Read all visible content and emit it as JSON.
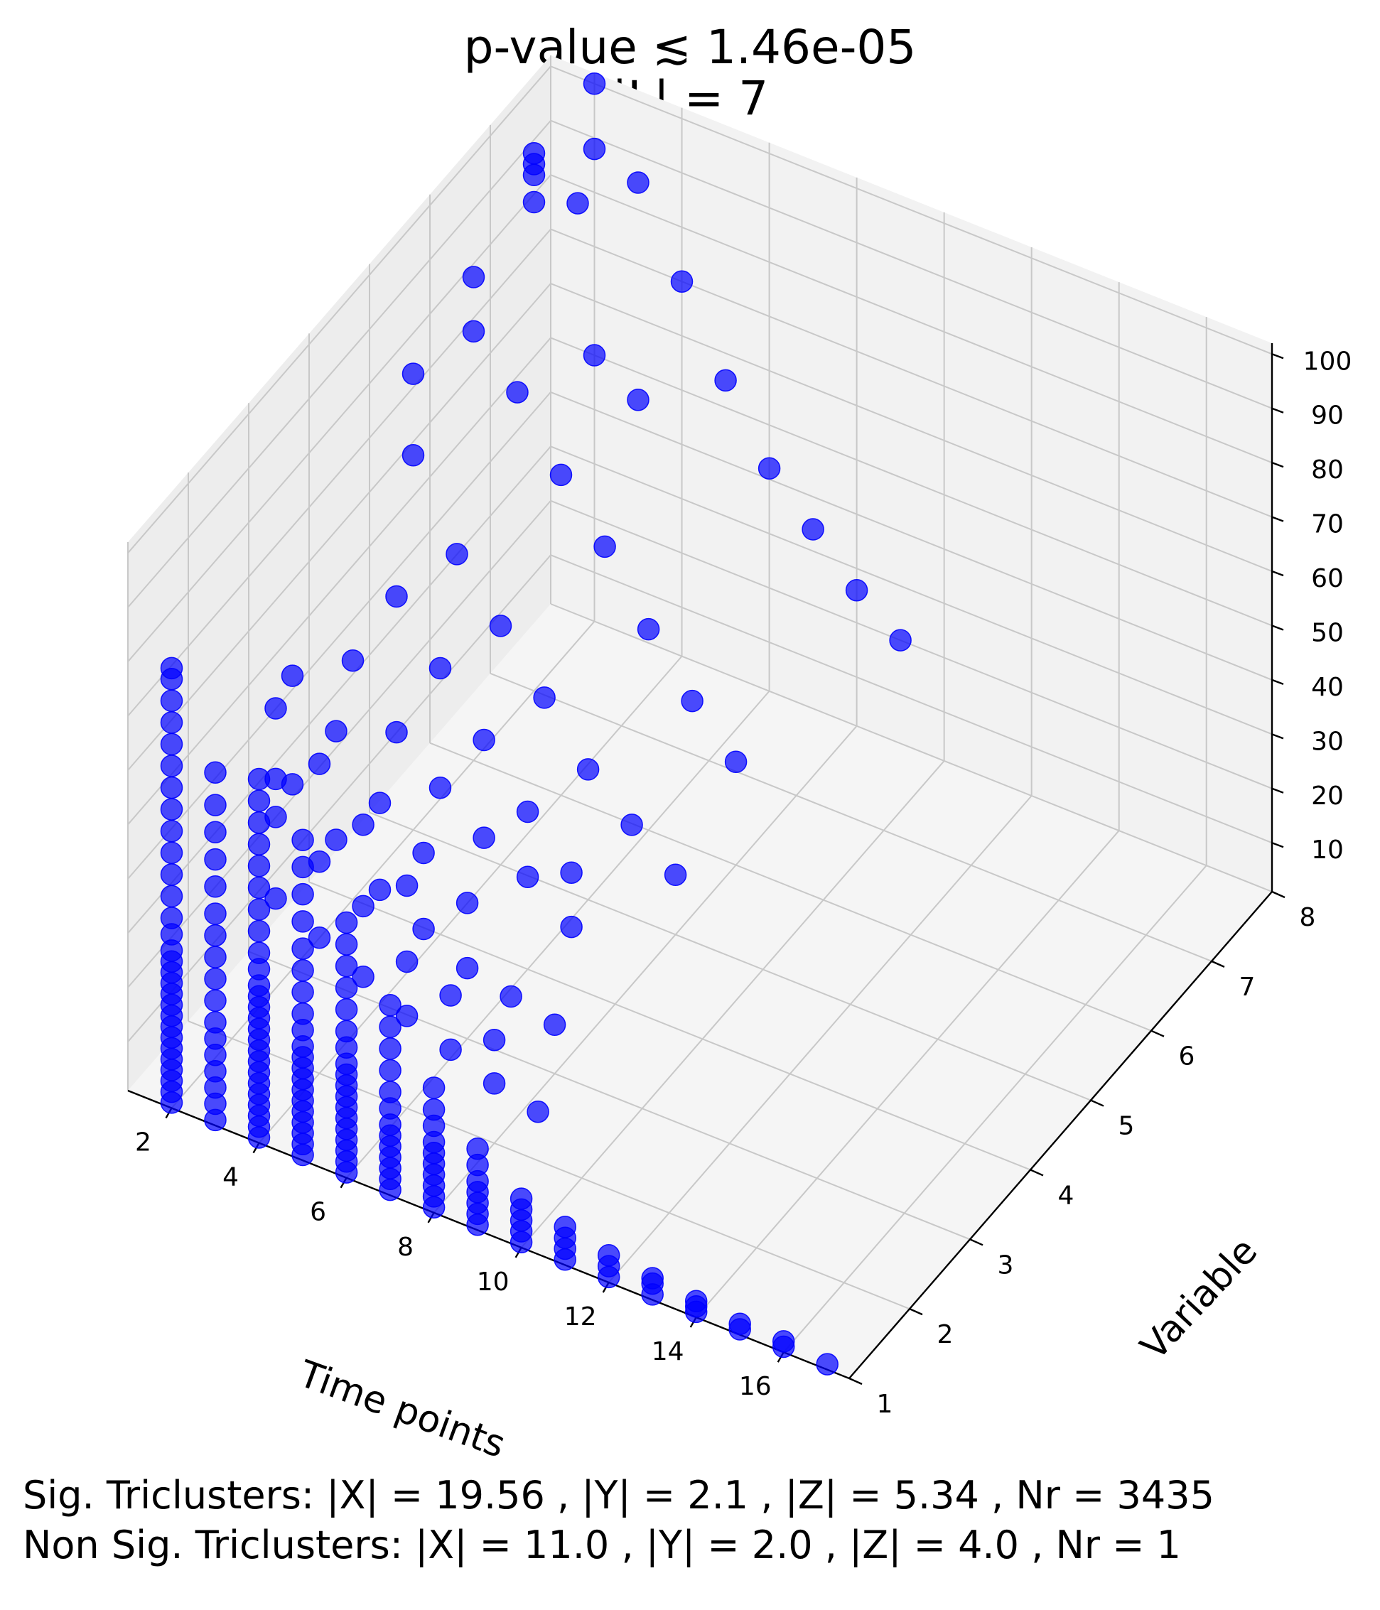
{
  "chart_data": {
    "type": "scatter3d",
    "title_lines": [
      "p-value ≲ 1.46e-05",
      "|L| = 7"
    ],
    "xlabel": "Time points",
    "ylabel": "Variable",
    "zlabel": "",
    "x_ticks": [
      2,
      4,
      6,
      8,
      10,
      12,
      14,
      16
    ],
    "y_ticks": [
      1,
      2,
      3,
      4,
      5,
      6,
      7,
      8
    ],
    "z_ticks": [
      10,
      20,
      30,
      40,
      50,
      60,
      70,
      80,
      90,
      100
    ],
    "xlim": [
      1,
      17.5
    ],
    "ylim": [
      1,
      8
    ],
    "zlim": [
      1,
      102
    ],
    "grid": true,
    "marker_color": "#0000ff",
    "marker_alpha": 0.7,
    "series": [
      {
        "marker": "circle",
        "points": [
          [
            2,
            1,
            2
          ],
          [
            2,
            1,
            4
          ],
          [
            2,
            1,
            6
          ],
          [
            2,
            1,
            8
          ],
          [
            2,
            1,
            10
          ],
          [
            2,
            1,
            12
          ],
          [
            2,
            1,
            14
          ],
          [
            2,
            1,
            16
          ],
          [
            2,
            1,
            18
          ],
          [
            2,
            1,
            20
          ],
          [
            2,
            1,
            22
          ],
          [
            2,
            1,
            24
          ],
          [
            2,
            1,
            26
          ],
          [
            2,
            1,
            28
          ],
          [
            2,
            1,
            30
          ],
          [
            2,
            1,
            33
          ],
          [
            2,
            1,
            36
          ],
          [
            2,
            1,
            40
          ],
          [
            2,
            1,
            44
          ],
          [
            2,
            1,
            48
          ],
          [
            2,
            1,
            52
          ],
          [
            2,
            1,
            56
          ],
          [
            2,
            1,
            60
          ],
          [
            2,
            1,
            64
          ],
          [
            2,
            1,
            68
          ],
          [
            2,
            1,
            72
          ],
          [
            2,
            1,
            76
          ],
          [
            2,
            1,
            80
          ],
          [
            2,
            1,
            82
          ],
          [
            3,
            1,
            2
          ],
          [
            3,
            1,
            5
          ],
          [
            3,
            1,
            8
          ],
          [
            3,
            1,
            11
          ],
          [
            3,
            1,
            14
          ],
          [
            3,
            1,
            17
          ],
          [
            3,
            1,
            20
          ],
          [
            3,
            1,
            24
          ],
          [
            3,
            1,
            28
          ],
          [
            3,
            1,
            32
          ],
          [
            3,
            1,
            36
          ],
          [
            3,
            1,
            40
          ],
          [
            3,
            1,
            45
          ],
          [
            3,
            1,
            50
          ],
          [
            3,
            1,
            55
          ],
          [
            3,
            1,
            60
          ],
          [
            3,
            1,
            66
          ],
          [
            4,
            1,
            2
          ],
          [
            4,
            1,
            4
          ],
          [
            4,
            1,
            6
          ],
          [
            4,
            1,
            8
          ],
          [
            4,
            1,
            10
          ],
          [
            4,
            1,
            12
          ],
          [
            4,
            1,
            14
          ],
          [
            4,
            1,
            16
          ],
          [
            4,
            1,
            18
          ],
          [
            4,
            1,
            20
          ],
          [
            4,
            1,
            22
          ],
          [
            4,
            1,
            24
          ],
          [
            4,
            1,
            26
          ],
          [
            4,
            1,
            28
          ],
          [
            4,
            1,
            30
          ],
          [
            4,
            1,
            33
          ],
          [
            4,
            1,
            36
          ],
          [
            4,
            1,
            40
          ],
          [
            4,
            1,
            44
          ],
          [
            4,
            1,
            48
          ],
          [
            4,
            1,
            52
          ],
          [
            4,
            1,
            56
          ],
          [
            4,
            1,
            60
          ],
          [
            4,
            1,
            64
          ],
          [
            4,
            1,
            68
          ],
          [
            5,
            1,
            2
          ],
          [
            5,
            1,
            4
          ],
          [
            5,
            1,
            6
          ],
          [
            5,
            1,
            8
          ],
          [
            5,
            1,
            10
          ],
          [
            5,
            1,
            12
          ],
          [
            5,
            1,
            14
          ],
          [
            5,
            1,
            16
          ],
          [
            5,
            1,
            18
          ],
          [
            5,
            1,
            20
          ],
          [
            5,
            1,
            22
          ],
          [
            5,
            1,
            25
          ],
          [
            5,
            1,
            28
          ],
          [
            5,
            1,
            32
          ],
          [
            5,
            1,
            36
          ],
          [
            5,
            1,
            40
          ],
          [
            5,
            1,
            45
          ],
          [
            5,
            1,
            50
          ],
          [
            5,
            1,
            55
          ],
          [
            5,
            1,
            60
          ],
          [
            6,
            1,
            2
          ],
          [
            6,
            1,
            4
          ],
          [
            6,
            1,
            6
          ],
          [
            6,
            1,
            8
          ],
          [
            6,
            1,
            10
          ],
          [
            6,
            1,
            12
          ],
          [
            6,
            1,
            14
          ],
          [
            6,
            1,
            16
          ],
          [
            6,
            1,
            18
          ],
          [
            6,
            1,
            20
          ],
          [
            6,
            1,
            22
          ],
          [
            6,
            1,
            25
          ],
          [
            6,
            1,
            28
          ],
          [
            6,
            1,
            32
          ],
          [
            6,
            1,
            36
          ],
          [
            6,
            1,
            40
          ],
          [
            6,
            1,
            44
          ],
          [
            6,
            1,
            48
          ],
          [
            7,
            1,
            2
          ],
          [
            7,
            1,
            4
          ],
          [
            7,
            1,
            6
          ],
          [
            7,
            1,
            8
          ],
          [
            7,
            1,
            10
          ],
          [
            7,
            1,
            12
          ],
          [
            7,
            1,
            14
          ],
          [
            7,
            1,
            17
          ],
          [
            7,
            1,
            20
          ],
          [
            7,
            1,
            24
          ],
          [
            7,
            1,
            28
          ],
          [
            7,
            1,
            32
          ],
          [
            7,
            1,
            36
          ],
          [
            8,
            1,
            2
          ],
          [
            8,
            1,
            4
          ],
          [
            8,
            1,
            6
          ],
          [
            8,
            1,
            8
          ],
          [
            8,
            1,
            10
          ],
          [
            8,
            1,
            12
          ],
          [
            8,
            1,
            14
          ],
          [
            8,
            1,
            17
          ],
          [
            8,
            1,
            20
          ],
          [
            8,
            1,
            24
          ],
          [
            9,
            1,
            2
          ],
          [
            9,
            1,
            4
          ],
          [
            9,
            1,
            6
          ],
          [
            9,
            1,
            8
          ],
          [
            9,
            1,
            10
          ],
          [
            9,
            1,
            13
          ],
          [
            9,
            1,
            16
          ],
          [
            10,
            1,
            2
          ],
          [
            10,
            1,
            4
          ],
          [
            10,
            1,
            6
          ],
          [
            10,
            1,
            8
          ],
          [
            10,
            1,
            10
          ],
          [
            11,
            1,
            2
          ],
          [
            11,
            1,
            4
          ],
          [
            11,
            1,
            6
          ],
          [
            11,
            1,
            8
          ],
          [
            12,
            1,
            2
          ],
          [
            12,
            1,
            4
          ],
          [
            12,
            1,
            6
          ],
          [
            13,
            1,
            2
          ],
          [
            13,
            1,
            4
          ],
          [
            13,
            1,
            5
          ],
          [
            14,
            1,
            2
          ],
          [
            14,
            1,
            3
          ],
          [
            14,
            1,
            4
          ],
          [
            15,
            1,
            2
          ],
          [
            15,
            1,
            3
          ],
          [
            16,
            1,
            2
          ],
          [
            16,
            1,
            3
          ],
          [
            17,
            1,
            2
          ],
          [
            3,
            2,
            30
          ],
          [
            3,
            2,
            45
          ],
          [
            3,
            2,
            52
          ],
          [
            3,
            2,
            65
          ],
          [
            4,
            2,
            26
          ],
          [
            4,
            2,
            40
          ],
          [
            4,
            2,
            58
          ],
          [
            5,
            2,
            22
          ],
          [
            5,
            2,
            35
          ],
          [
            5,
            2,
            50
          ],
          [
            6,
            2,
            18
          ],
          [
            6,
            2,
            28
          ],
          [
            6,
            2,
            42
          ],
          [
            7,
            2,
            15
          ],
          [
            7,
            2,
            25
          ],
          [
            8,
            2,
            12
          ],
          [
            8,
            2,
            20
          ],
          [
            9,
            2,
            10
          ],
          [
            2,
            3,
            35
          ],
          [
            2,
            3,
            55
          ],
          [
            3,
            3,
            28
          ],
          [
            3,
            3,
            48
          ],
          [
            4,
            3,
            22
          ],
          [
            4,
            3,
            38
          ],
          [
            5,
            3,
            18
          ],
          [
            5,
            3,
            32
          ],
          [
            6,
            3,
            14
          ],
          [
            6,
            3,
            26
          ],
          [
            7,
            3,
            12
          ],
          [
            8,
            3,
            10
          ],
          [
            2,
            4,
            45
          ],
          [
            3,
            4,
            35
          ],
          [
            3,
            4,
            60
          ],
          [
            4,
            4,
            28
          ],
          [
            4,
            4,
            50
          ],
          [
            5,
            4,
            22
          ],
          [
            5,
            4,
            40
          ],
          [
            6,
            4,
            18
          ],
          [
            6,
            4,
            30
          ],
          [
            7,
            4,
            12
          ],
          [
            7,
            4,
            22
          ],
          [
            2,
            5,
            85
          ],
          [
            2,
            5,
            70
          ],
          [
            3,
            5,
            55
          ],
          [
            4,
            5,
            45
          ],
          [
            5,
            5,
            35
          ],
          [
            6,
            5,
            25
          ],
          [
            7,
            5,
            18
          ],
          [
            8,
            5,
            12
          ],
          [
            2,
            6,
            90
          ],
          [
            2,
            6,
            80
          ],
          [
            3,
            6,
            72
          ],
          [
            4,
            6,
            60
          ],
          [
            5,
            6,
            50
          ],
          [
            6,
            6,
            38
          ],
          [
            7,
            6,
            28
          ],
          [
            8,
            6,
            20
          ],
          [
            2,
            7,
            100
          ],
          [
            2,
            7,
            98
          ],
          [
            2,
            7,
            96
          ],
          [
            3,
            7,
            94
          ],
          [
            2,
            7,
            91
          ],
          [
            2,
            8,
            100
          ],
          [
            2,
            8,
            88
          ],
          [
            3,
            8,
            85
          ],
          [
            4,
            8,
            70
          ],
          [
            5,
            8,
            55
          ],
          [
            6,
            8,
            42
          ],
          [
            7,
            8,
            34
          ],
          [
            8,
            8,
            26
          ],
          [
            9,
            8,
            20
          ],
          [
            2,
            8,
            50
          ],
          [
            3,
            8,
            45
          ]
        ]
      }
    ],
    "footer_lines": [
      "Sig. Triclusters: |X| = 19.56 , |Y| = 2.1 , |Z| = 5.34 , Nr = 3435",
      "Non Sig. Triclusters: |X| = 11.0 , |Y| = 2.0 , |Z| = 4.0 , Nr = 1"
    ]
  }
}
